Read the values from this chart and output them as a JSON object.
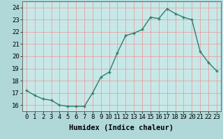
{
  "xlabel": "Humidex (Indice chaleur)",
  "x": [
    0,
    1,
    2,
    3,
    4,
    5,
    6,
    7,
    8,
    9,
    10,
    11,
    12,
    13,
    14,
    15,
    16,
    17,
    18,
    19,
    20,
    21,
    22,
    23
  ],
  "y": [
    17.2,
    16.8,
    16.5,
    16.4,
    16.0,
    15.9,
    15.9,
    15.9,
    17.0,
    18.3,
    18.7,
    20.3,
    21.7,
    21.9,
    22.2,
    23.2,
    23.1,
    23.9,
    23.5,
    23.2,
    23.0,
    20.4,
    19.5,
    18.8
  ],
  "ylim": [
    15.5,
    24.5
  ],
  "xlim": [
    -0.5,
    23.5
  ],
  "yticks": [
    16,
    17,
    18,
    19,
    20,
    21,
    22,
    23,
    24
  ],
  "xticks": [
    0,
    1,
    2,
    3,
    4,
    5,
    6,
    7,
    8,
    9,
    10,
    11,
    12,
    13,
    14,
    15,
    16,
    17,
    18,
    19,
    20,
    21,
    22,
    23
  ],
  "line_color": "#2d7d6b",
  "marker": "+",
  "bg_color": "#b0d8d8",
  "grid_color": "#e8a0a0",
  "axis_bg": "#c8e8e8",
  "xlabel_fontsize": 7.5,
  "tick_fontsize": 6.5
}
